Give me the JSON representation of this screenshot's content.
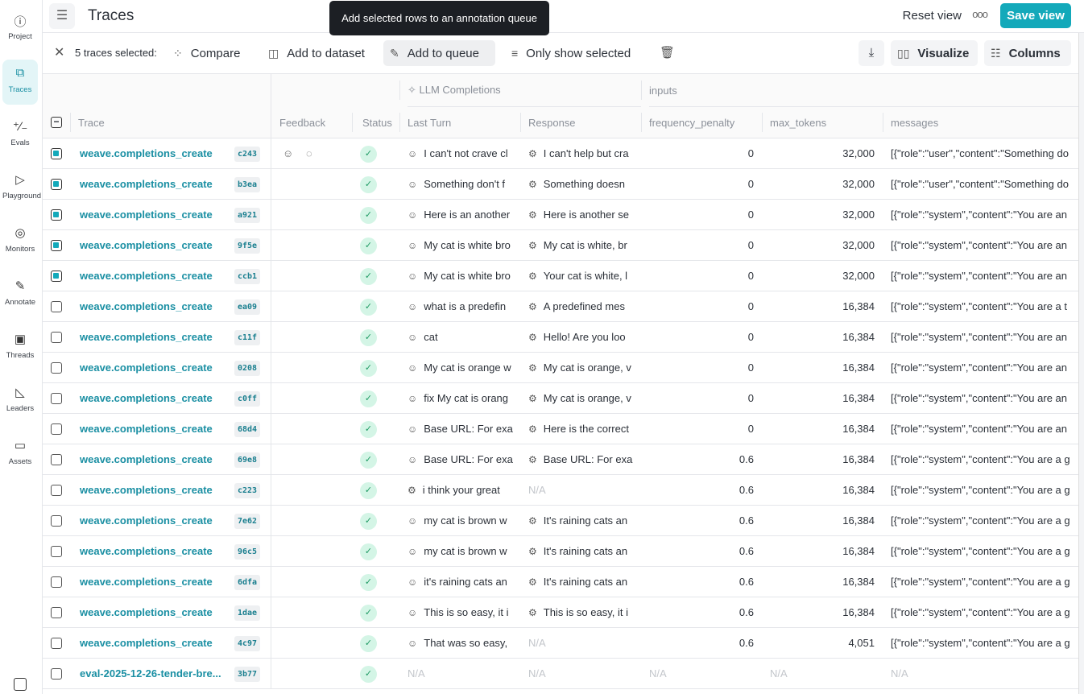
{
  "sidebar": {
    "items": [
      {
        "label": "Project",
        "icon": "info-icon"
      },
      {
        "label": "Traces",
        "icon": "traces-icon",
        "active": true
      },
      {
        "label": "Evals",
        "icon": "evals-icon"
      },
      {
        "label": "Playground",
        "icon": "play-icon"
      },
      {
        "label": "Monitors",
        "icon": "monitor-icon"
      },
      {
        "label": "Annotate",
        "icon": "pencil-icon"
      },
      {
        "label": "Threads",
        "icon": "threads-icon"
      },
      {
        "label": "Leaders",
        "icon": "leaderboard-icon"
      },
      {
        "label": "Assets",
        "icon": "folder-icon"
      }
    ]
  },
  "header": {
    "title": "Traces",
    "tooltip": "Add selected rows to an annotation queue",
    "reset_view": "Reset view",
    "more": "ooo",
    "save_view": "Save view"
  },
  "toolbar": {
    "selected": "5 traces selected:",
    "compare": "Compare",
    "add_dataset": "Add to dataset",
    "add_queue": "Add to queue",
    "only_selected": "Only show selected",
    "visualize": "Visualize",
    "columns": "Columns"
  },
  "grid": {
    "group_llm": "LLM Completions",
    "group_inputs": "inputs",
    "columns": {
      "trace": "Trace",
      "feedback": "Feedback",
      "status": "Status",
      "last_turn": "Last Turn",
      "response": "Response",
      "freq": "frequency_penalty",
      "max_tokens": "max_tokens",
      "messages": "messages"
    },
    "rows": [
      {
        "sel": true,
        "name": "weave.completions_create",
        "id": "c243",
        "fb": true,
        "last": "I can't not crave cl",
        "resp": "I can't help but cra",
        "freq": "0",
        "max": "32,000",
        "msg": "[{\"role\":\"user\",\"content\":\"Something do"
      },
      {
        "sel": true,
        "name": "weave.completions_create",
        "id": "b3ea",
        "last": "Something don't f",
        "resp": "Something doesn",
        "freq": "0",
        "max": "32,000",
        "msg": "[{\"role\":\"user\",\"content\":\"Something do"
      },
      {
        "sel": true,
        "name": "weave.completions_create",
        "id": "a921",
        "last": "Here is an another",
        "resp": "Here is another se",
        "freq": "0",
        "max": "32,000",
        "msg": "[{\"role\":\"system\",\"content\":\"You are an"
      },
      {
        "sel": true,
        "name": "weave.completions_create",
        "id": "9f5e",
        "last": "My cat is white bro",
        "resp": "My cat is white, br",
        "freq": "0",
        "max": "32,000",
        "msg": "[{\"role\":\"system\",\"content\":\"You are an"
      },
      {
        "sel": true,
        "name": "weave.completions_create",
        "id": "ccb1",
        "last": "My cat is white bro",
        "resp": "Your cat is white, l",
        "freq": "0",
        "max": "32,000",
        "msg": "[{\"role\":\"system\",\"content\":\"You are an"
      },
      {
        "name": "weave.completions_create",
        "id": "ea09",
        "last": "what is a predefin",
        "resp": "A predefined mes",
        "freq": "0",
        "max": "16,384",
        "msg": "[{\"role\":\"system\",\"content\":\"You are a t"
      },
      {
        "name": "weave.completions_create",
        "id": "c11f",
        "last": "cat",
        "resp": "Hello! Are you loo",
        "freq": "0",
        "max": "16,384",
        "msg": "[{\"role\":\"system\",\"content\":\"You are an"
      },
      {
        "name": "weave.completions_create",
        "id": "0208",
        "last": "My cat is orange w",
        "resp": "My cat is orange, v",
        "freq": "0",
        "max": "16,384",
        "msg": "[{\"role\":\"system\",\"content\":\"You are an"
      },
      {
        "name": "weave.completions_create",
        "id": "c0ff",
        "last": "fix My cat is orang",
        "resp": "My cat is orange, v",
        "freq": "0",
        "max": "16,384",
        "msg": "[{\"role\":\"system\",\"content\":\"You are an"
      },
      {
        "name": "weave.completions_create",
        "id": "68d4",
        "last": "Base URL: For exa",
        "resp": "Here is the correct",
        "freq": "0",
        "max": "16,384",
        "msg": "[{\"role\":\"system\",\"content\":\"You are an"
      },
      {
        "name": "weave.completions_create",
        "id": "69e8",
        "last": "Base URL: For exa",
        "resp": "Base URL: For exa",
        "freq": "0.6",
        "max": "16,384",
        "msg": "[{\"role\":\"system\",\"content\":\"You are a g"
      },
      {
        "name": "weave.completions_create",
        "id": "c223",
        "last": "i think your great",
        "lastBot": true,
        "resp": "N/A",
        "freq": "0.6",
        "max": "16,384",
        "msg": "[{\"role\":\"system\",\"content\":\"You are a g"
      },
      {
        "name": "weave.completions_create",
        "id": "7e62",
        "last": "my cat is brown w",
        "resp": "It's raining cats an",
        "freq": "0.6",
        "max": "16,384",
        "msg": "[{\"role\":\"system\",\"content\":\"You are a g"
      },
      {
        "name": "weave.completions_create",
        "id": "96c5",
        "last": "my cat is brown w",
        "resp": "It's raining cats an",
        "freq": "0.6",
        "max": "16,384",
        "msg": "[{\"role\":\"system\",\"content\":\"You are a g"
      },
      {
        "name": "weave.completions_create",
        "id": "6dfa",
        "last": "it's raining cats an",
        "resp": "It's raining cats an",
        "freq": "0.6",
        "max": "16,384",
        "msg": "[{\"role\":\"system\",\"content\":\"You are a g"
      },
      {
        "name": "weave.completions_create",
        "id": "1dae",
        "last": "This is so easy, it i",
        "resp": "This is so easy, it i",
        "freq": "0.6",
        "max": "16,384",
        "msg": "[{\"role\":\"system\",\"content\":\"You are a g"
      },
      {
        "name": "weave.completions_create",
        "id": "4c97",
        "last": "That was so easy,",
        "resp": "N/A",
        "freq": "0.6",
        "max": "4,051",
        "msg": "[{\"role\":\"system\",\"content\":\"You are a g"
      },
      {
        "name": "eval-2025-12-26-tender-bre...",
        "id": "3b77",
        "last": "N/A",
        "resp": "N/A",
        "freq": "N/A",
        "max": "N/A",
        "msg": "N/A"
      }
    ]
  },
  "colors": {
    "accent": "#13a9ba",
    "link": "#1a8fa3",
    "status_bg": "#d4f5e6"
  }
}
